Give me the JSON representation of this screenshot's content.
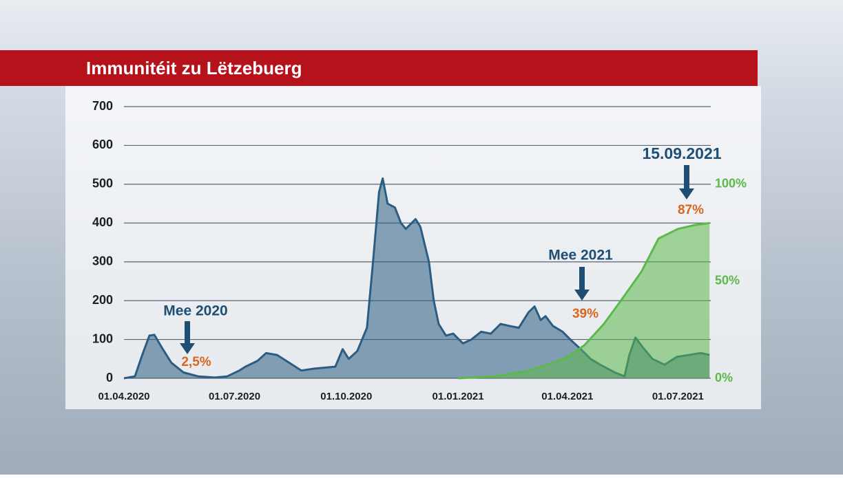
{
  "chart_data": {
    "type": "area",
    "title": "Immunitéit zu Lëtzebuerg",
    "xlim": [
      "01.04.2020",
      "28.07.2021"
    ],
    "xticks": [
      "01.04.2020",
      "01.07.2020",
      "01.10.2020",
      "01.01.2021",
      "01.04.2021",
      "01.07.2021"
    ],
    "ylim": [
      0,
      700
    ],
    "yticks": [
      0,
      100,
      200,
      300,
      400,
      500,
      600,
      700
    ],
    "y2lim": [
      0,
      140
    ],
    "y2ticks": [
      {
        "value": 0,
        "label": "0%"
      },
      {
        "value": 50,
        "label": "50%"
      },
      {
        "value": 100,
        "label": "100%"
      }
    ],
    "grid": true,
    "series": [
      {
        "color": "#2c5c82",
        "x": [
          "01.04.2020",
          "10.04.2020",
          "16.04.2020",
          "22.04.2020",
          "26.04.2020",
          "02.05.2020",
          "10.05.2020",
          "20.05.2020",
          "01.06.2020",
          "15.06.2020",
          "25.06.2020",
          "05.07.2020",
          "10.07.2020",
          "20.07.2020",
          "27.07.2020",
          "05.08.2020",
          "15.08.2020",
          "25.08.2020",
          "05.09.2020",
          "15.09.2020",
          "22.09.2020",
          "28.09.2020",
          "03.10.2020",
          "10.10.2020",
          "18.10.2020",
          "23.10.2020",
          "28.10.2020",
          "31.10.2020",
          "04.11.2020",
          "10.11.2020",
          "15.11.2020",
          "19.11.2020",
          "27.11.2020",
          "01.12.2020",
          "08.12.2020",
          "12.12.2020",
          "16.12.2020",
          "22.12.2020",
          "28.12.2020",
          "05.01.2021",
          "12.01.2021",
          "20.01.2021",
          "28.01.2021",
          "05.02.2021",
          "12.02.2021",
          "20.02.2021",
          "28.02.2021",
          "05.03.2021",
          "10.03.2021",
          "14.03.2021",
          "20.03.2021",
          "28.03.2021",
          "05.04.2021",
          "12.04.2021",
          "20.04.2021",
          "28.04.2021",
          "10.05.2021",
          "18.05.2021",
          "22.05.2021",
          "27.05.2021",
          "02.06.2021",
          "10.06.2021",
          "20.06.2021",
          "30.06.2021",
          "10.07.2021",
          "20.07.2021",
          "27.07.2021"
        ],
        "values": [
          0,
          5,
          60,
          110,
          112,
          80,
          40,
          15,
          5,
          2,
          5,
          20,
          30,
          45,
          65,
          60,
          40,
          20,
          25,
          28,
          30,
          75,
          50,
          70,
          130,
          300,
          480,
          515,
          450,
          440,
          400,
          385,
          410,
          390,
          300,
          200,
          140,
          110,
          115,
          90,
          100,
          120,
          115,
          140,
          135,
          130,
          170,
          185,
          150,
          160,
          135,
          120,
          95,
          75,
          50,
          35,
          15,
          5,
          60,
          105,
          80,
          50,
          35,
          55,
          60,
          65,
          60
        ]
      },
      {
        "color": "#5cb84a",
        "axis": "y2",
        "x": [
          "01.01.2021",
          "01.02.2021",
          "01.03.2021",
          "20.03.2021",
          "01.04.2021",
          "15.04.2021",
          "01.05.2021",
          "15.05.2021",
          "01.06.2021",
          "15.06.2021",
          "01.07.2021",
          "15.07.2021",
          "27.07.2021"
        ],
        "values": [
          0,
          1,
          4,
          8,
          11,
          17,
          28,
          40,
          55,
          72,
          77,
          79,
          80
        ]
      }
    ],
    "annotations": [
      {
        "title": "Mee 2020",
        "value": "2,5%"
      },
      {
        "title": "Mee 2021",
        "value": "39%"
      },
      {
        "title": "15.09.2021",
        "value": "87%"
      }
    ]
  }
}
